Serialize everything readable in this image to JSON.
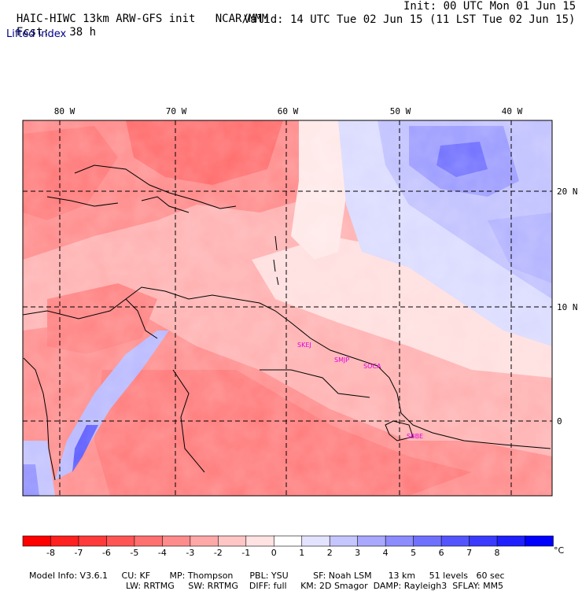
{
  "header": {
    "model_title": "HAIC-HIWC 13km ARW-GFS init",
    "org": "NCAR/MMM",
    "forecast_label": "Fcst:",
    "forecast_hours": "38 h",
    "init_time": "Init: 00 UTC Mon 01 Jun 15",
    "valid_time": "Valid: 14 UTC Tue 02 Jun 15 (11 LST Tue 02 Jun 15)",
    "field_name": "Lifted index"
  },
  "map": {
    "lon_labels": [
      "80 W",
      "70 W",
      "60 W",
      "50 W",
      "40 W"
    ],
    "lat_labels": [
      "20 N",
      "10 N",
      "0"
    ],
    "station_labels": [
      "SKEJ",
      "SMJP",
      "SOCA",
      "SBBE"
    ],
    "station_color": "#e000e0",
    "contour_color": "#000000",
    "land_line_color": "#000000"
  },
  "colorbar": {
    "unit": "°C",
    "ticks": [
      "-8",
      "-7",
      "-6",
      "-5",
      "-4",
      "-3",
      "-2",
      "-1",
      "0",
      "1",
      "2",
      "3",
      "4",
      "5",
      "6",
      "7",
      "8"
    ],
    "colors": [
      "#ff0000",
      "#ff2020",
      "#ff3b3b",
      "#ff5555",
      "#ff7070",
      "#ff8c8c",
      "#ffa8a8",
      "#ffc6c6",
      "#ffe3e3",
      "#ffffff",
      "#e3e3ff",
      "#c6c6ff",
      "#a8a8ff",
      "#8c8cff",
      "#7070ff",
      "#5555ff",
      "#3b3bff",
      "#2020ff",
      "#0000ff"
    ]
  },
  "footer": {
    "line1": [
      "Model Info: V3.6.1",
      "CU: KF",
      "MP: Thompson",
      "PBL: YSU",
      "SF: Noah LSM",
      "13 km",
      "51 levels",
      "60 sec"
    ],
    "line2": [
      "LW: RRTMG",
      "SW: RRTMG",
      "DIFF: full",
      "KM: 2D Smagor",
      "DAMP: Rayleigh3",
      "SFLAY: MM5"
    ]
  }
}
